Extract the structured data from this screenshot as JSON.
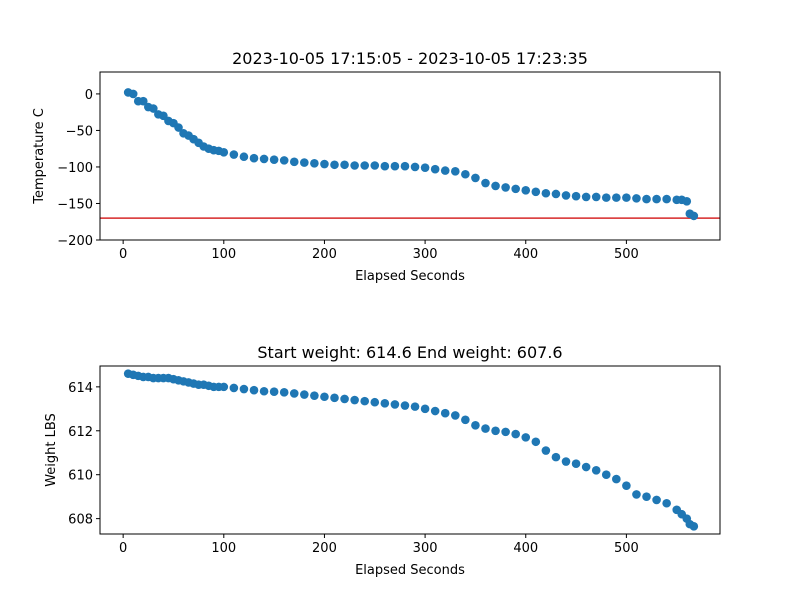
{
  "chart_data": [
    {
      "type": "scatter",
      "title": "2023-10-05 17:15:05 - 2023-10-05 17:23:35",
      "xlabel": "Elapsed Seconds",
      "ylabel": "Temperature C",
      "xlim": [
        -23,
        593
      ],
      "ylim": [
        -200,
        30
      ],
      "xticks": [
        0,
        100,
        200,
        300,
        400,
        500
      ],
      "yticks": [
        0,
        -50,
        -100,
        -150,
        -200
      ],
      "grid": false,
      "marker_color": "#1f77b4",
      "reference_line": {
        "y": -170,
        "color": "#d62728"
      },
      "x": [
        5,
        10,
        15,
        20,
        25,
        30,
        35,
        40,
        45,
        50,
        55,
        60,
        65,
        70,
        75,
        80,
        85,
        90,
        95,
        100,
        110,
        120,
        130,
        140,
        150,
        160,
        170,
        180,
        190,
        200,
        210,
        220,
        230,
        240,
        250,
        260,
        270,
        280,
        290,
        300,
        310,
        320,
        330,
        340,
        350,
        360,
        370,
        380,
        390,
        400,
        410,
        420,
        430,
        440,
        450,
        460,
        470,
        480,
        490,
        500,
        510,
        520,
        530,
        540,
        550,
        555,
        560,
        563,
        567
      ],
      "y": [
        2,
        0,
        -10,
        -10,
        -18,
        -20,
        -28,
        -30,
        -37,
        -40,
        -46,
        -54,
        -57,
        -62,
        -67,
        -72,
        -75,
        -77,
        -78,
        -80,
        -83,
        -86,
        -88,
        -89,
        -90,
        -91,
        -93,
        -94,
        -95,
        -96,
        -97,
        -97,
        -98,
        -98,
        -98,
        -99,
        -99,
        -99,
        -100,
        -101,
        -103,
        -105,
        -106,
        -110,
        -115,
        -122,
        -126,
        -128,
        -130,
        -132,
        -134,
        -136,
        -137,
        -139,
        -140,
        -141,
        -141,
        -142,
        -142,
        -142,
        -143,
        -144,
        -144,
        -144,
        -145,
        -145,
        -147,
        -164,
        -167
      ]
    },
    {
      "type": "scatter",
      "title": "Start weight: 614.6 End weight: 607.6",
      "xlabel": "Elapsed Seconds",
      "ylabel": "Weight LBS",
      "xlim": [
        -23,
        593
      ],
      "ylim": [
        607.3,
        614.95
      ],
      "xticks": [
        0,
        100,
        200,
        300,
        400,
        500
      ],
      "yticks": [
        608,
        610,
        612,
        614
      ],
      "grid": false,
      "marker_color": "#1f77b4",
      "x": [
        5,
        10,
        15,
        20,
        25,
        30,
        35,
        40,
        45,
        50,
        55,
        60,
        65,
        70,
        75,
        80,
        85,
        90,
        95,
        100,
        110,
        120,
        130,
        140,
        150,
        160,
        170,
        180,
        190,
        200,
        210,
        220,
        230,
        240,
        250,
        260,
        270,
        280,
        290,
        300,
        310,
        320,
        330,
        340,
        350,
        360,
        370,
        380,
        390,
        400,
        410,
        420,
        430,
        440,
        450,
        460,
        470,
        480,
        490,
        500,
        510,
        520,
        530,
        540,
        550,
        555,
        560,
        563,
        567
      ],
      "y": [
        614.6,
        614.55,
        614.5,
        614.45,
        614.45,
        614.4,
        614.4,
        614.4,
        614.4,
        614.35,
        614.3,
        614.25,
        614.2,
        614.15,
        614.1,
        614.1,
        614.05,
        614.0,
        614.0,
        614.0,
        613.95,
        613.9,
        613.85,
        613.8,
        613.78,
        613.75,
        613.7,
        613.65,
        613.6,
        613.55,
        613.5,
        613.45,
        613.4,
        613.35,
        613.3,
        613.25,
        613.2,
        613.15,
        613.1,
        613.0,
        612.9,
        612.8,
        612.7,
        612.5,
        612.25,
        612.1,
        612.0,
        611.95,
        611.85,
        611.7,
        611.5,
        611.1,
        610.8,
        610.6,
        610.5,
        610.35,
        610.2,
        610.0,
        609.8,
        609.5,
        609.1,
        609.0,
        608.85,
        608.7,
        608.4,
        608.2,
        608.0,
        607.75,
        607.65
      ]
    }
  ]
}
